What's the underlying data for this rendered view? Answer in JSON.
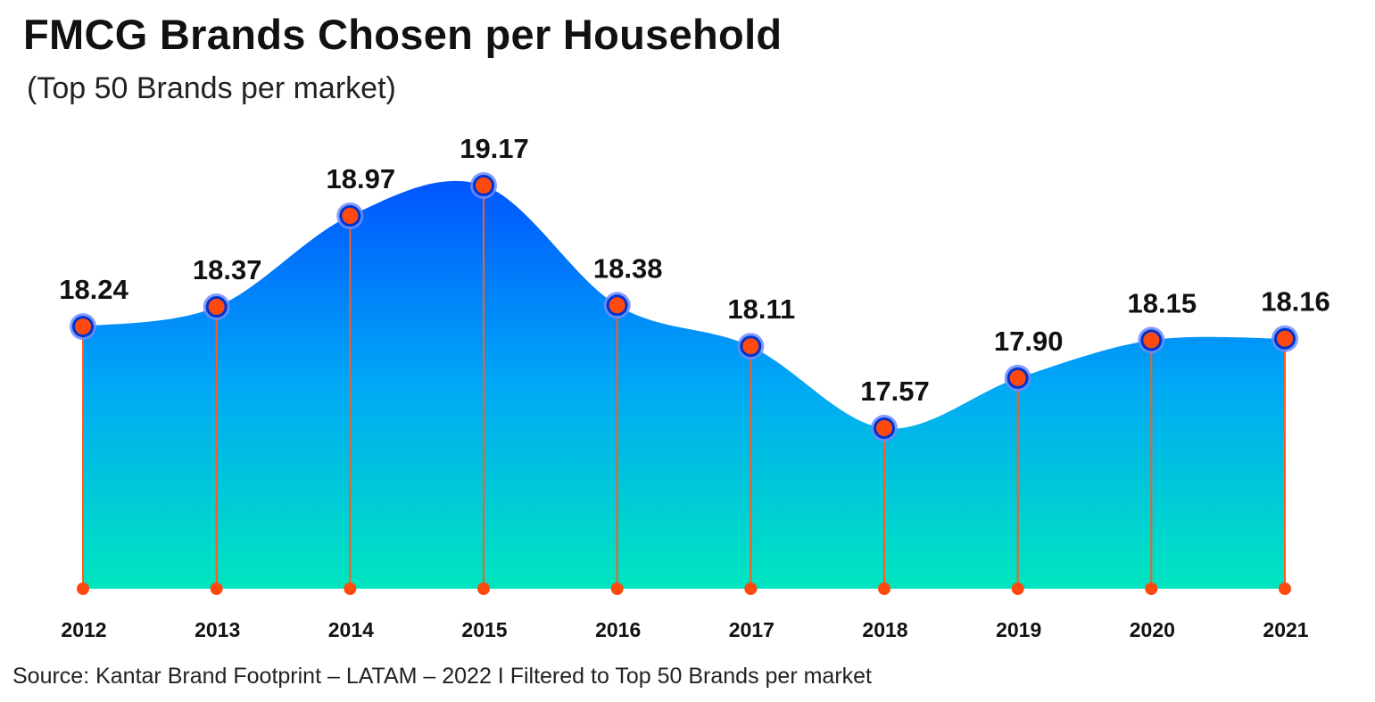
{
  "title": "FMCG Brands Chosen per Household",
  "subtitle": "(Top 50 Brands per market)",
  "source": "Source: Kantar Brand Footprint – LATAM – 2022 I Filtered to Top 50 Brands per market",
  "colors": {
    "area_top": "#0055ff",
    "area_mid": "#00a8f5",
    "area_bottom": "#00e6bf",
    "marker_fill": "#ff4a0f",
    "marker_ring": "#0033cc",
    "marker_halo": "#6a8cff",
    "stem": "#ff5a1f"
  },
  "chart_data": {
    "type": "area",
    "categories": [
      "2012",
      "2013",
      "2014",
      "2015",
      "2016",
      "2017",
      "2018",
      "2019",
      "2020",
      "2021"
    ],
    "values": [
      18.24,
      18.37,
      18.97,
      19.17,
      18.38,
      18.11,
      17.57,
      17.9,
      18.15,
      18.16
    ],
    "labels": [
      "18.24",
      "18.37",
      "18.97",
      "19.17",
      "18.38",
      "18.11",
      "17.57",
      "17.90",
      "18.15",
      "18.16"
    ],
    "smooth": true,
    "markers": true,
    "drop_lines": true,
    "legend": "none",
    "grid": false,
    "y_axis_visible": false
  }
}
